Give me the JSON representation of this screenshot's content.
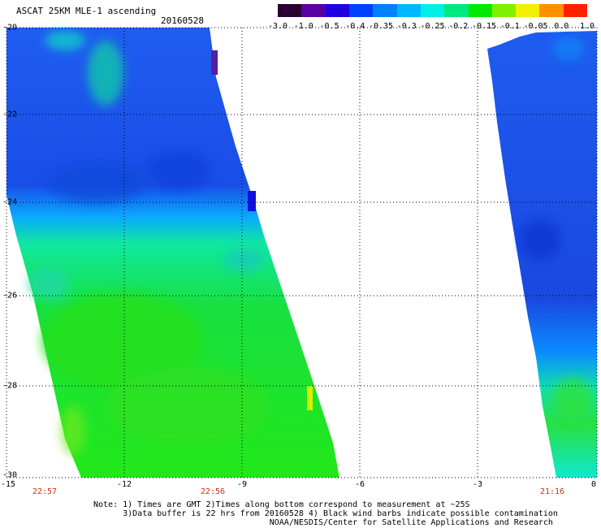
{
  "header": {
    "title": "ASCAT 25KM MLE-1 ascending",
    "date": "20160528"
  },
  "colorbar": {
    "labels": [
      "-3.0",
      "-1.0",
      "-0.5",
      "-0.4",
      "-0.35",
      "-0.3",
      "-0.25",
      "-0.2",
      "-0.15",
      "-0.1",
      "-0.05",
      "0.0",
      "1.0"
    ],
    "colors": [
      "#2a0030",
      "#5a00a0",
      "#2000e0",
      "#0040ff",
      "#0080ff",
      "#00b8ff",
      "#00f0e8",
      "#00e880",
      "#00e800",
      "#80f000",
      "#f0f000",
      "#ff9000",
      "#ff2000"
    ]
  },
  "axes": {
    "y_labels": [
      "-20",
      "-22",
      "-24",
      "-26",
      "-28",
      "-30"
    ],
    "x_labels": [
      "-15",
      "-12",
      "-9",
      "-6",
      "-3",
      "0"
    ],
    "time_labels": [
      "22:57",
      "22:56",
      "21:16"
    ]
  },
  "notes": {
    "line1": "Note: 1) Times are GMT 2)Times along bottom correspond to measurement at ~25S",
    "line2": "      3)Data buffer is 22 hrs from 20160528 4) Black wind barbs indicate possible contamination",
    "line3": "                                    NOAA/NESDIS/Center for Satellite Applications and Research"
  }
}
